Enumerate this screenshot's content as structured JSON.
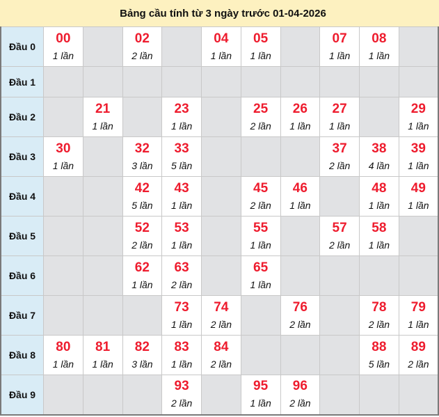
{
  "title": "Bảng cầu tính từ 3 ngày trước 01-04-2026",
  "colors": {
    "number": "#ee1c2e",
    "label_bg": "#d9ecf6",
    "empty_bg": "#e1e2e4",
    "title_bg": "#fdf1c0"
  },
  "rows": [
    {
      "label": "Đầu 0",
      "cells": [
        {
          "num": "00",
          "count": "1 lần"
        },
        null,
        {
          "num": "02",
          "count": "2 lần"
        },
        null,
        {
          "num": "04",
          "count": "1 lần"
        },
        {
          "num": "05",
          "count": "1 lần"
        },
        null,
        {
          "num": "07",
          "count": "1 lần"
        },
        {
          "num": "08",
          "count": "1 lần"
        },
        null
      ]
    },
    {
      "label": "Đầu 1",
      "cells": [
        null,
        null,
        null,
        null,
        null,
        null,
        null,
        null,
        null,
        null
      ]
    },
    {
      "label": "Đầu 2",
      "cells": [
        null,
        {
          "num": "21",
          "count": "1 lần"
        },
        null,
        {
          "num": "23",
          "count": "1 lần"
        },
        null,
        {
          "num": "25",
          "count": "2 lần"
        },
        {
          "num": "26",
          "count": "1 lần"
        },
        {
          "num": "27",
          "count": "1 lần"
        },
        null,
        {
          "num": "29",
          "count": "1 lần"
        }
      ]
    },
    {
      "label": "Đầu 3",
      "cells": [
        {
          "num": "30",
          "count": "1 lần"
        },
        null,
        {
          "num": "32",
          "count": "3 lần"
        },
        {
          "num": "33",
          "count": "5 lần"
        },
        null,
        null,
        null,
        {
          "num": "37",
          "count": "2 lần"
        },
        {
          "num": "38",
          "count": "4 lần"
        },
        {
          "num": "39",
          "count": "1 lần"
        }
      ]
    },
    {
      "label": "Đầu 4",
      "cells": [
        null,
        null,
        {
          "num": "42",
          "count": "5 lần"
        },
        {
          "num": "43",
          "count": "1 lần"
        },
        null,
        {
          "num": "45",
          "count": "2 lần"
        },
        {
          "num": "46",
          "count": "1 lần"
        },
        null,
        {
          "num": "48",
          "count": "1 lần"
        },
        {
          "num": "49",
          "count": "1 lần"
        }
      ]
    },
    {
      "label": "Đầu 5",
      "cells": [
        null,
        null,
        {
          "num": "52",
          "count": "2 lần"
        },
        {
          "num": "53",
          "count": "1 lần"
        },
        null,
        {
          "num": "55",
          "count": "1 lần"
        },
        null,
        {
          "num": "57",
          "count": "2 lần"
        },
        {
          "num": "58",
          "count": "1 lần"
        },
        null
      ]
    },
    {
      "label": "Đầu 6",
      "cells": [
        null,
        null,
        {
          "num": "62",
          "count": "1 lần"
        },
        {
          "num": "63",
          "count": "2 lần"
        },
        null,
        {
          "num": "65",
          "count": "1 lần"
        },
        null,
        null,
        null,
        null
      ]
    },
    {
      "label": "Đầu 7",
      "cells": [
        null,
        null,
        null,
        {
          "num": "73",
          "count": "1 lần"
        },
        {
          "num": "74",
          "count": "2 lần"
        },
        null,
        {
          "num": "76",
          "count": "2 lần"
        },
        null,
        {
          "num": "78",
          "count": "2 lần"
        },
        {
          "num": "79",
          "count": "1 lần"
        }
      ]
    },
    {
      "label": "Đầu 8",
      "cells": [
        {
          "num": "80",
          "count": "1 lần"
        },
        {
          "num": "81",
          "count": "1 lần"
        },
        {
          "num": "82",
          "count": "3 lần"
        },
        {
          "num": "83",
          "count": "1 lần"
        },
        {
          "num": "84",
          "count": "2 lần"
        },
        null,
        null,
        null,
        {
          "num": "88",
          "count": "5 lần"
        },
        {
          "num": "89",
          "count": "2 lần"
        }
      ]
    },
    {
      "label": "Đầu 9",
      "cells": [
        null,
        null,
        null,
        {
          "num": "93",
          "count": "2 lần"
        },
        null,
        {
          "num": "95",
          "count": "1 lần"
        },
        {
          "num": "96",
          "count": "2 lần"
        },
        null,
        null,
        null
      ]
    }
  ]
}
